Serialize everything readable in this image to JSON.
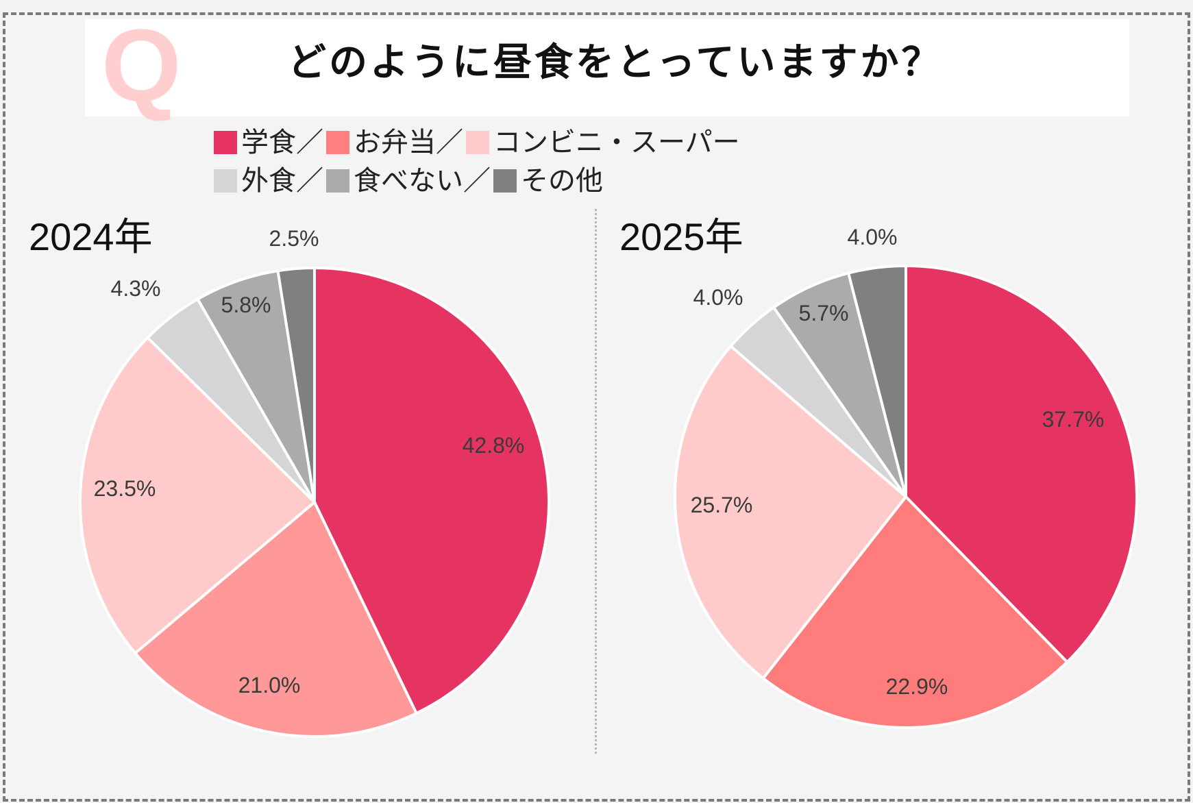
{
  "header": {
    "q_mark": "Q",
    "title": "どのように昼食をとっていますか？"
  },
  "legend": {
    "rows": [
      [
        {
          "label": "学食",
          "sep": "／",
          "color": "#e63462"
        },
        {
          "label": "お弁当",
          "sep": "／",
          "color": "#ff8080"
        },
        {
          "label": "コンビニ・スーパー",
          "sep": "",
          "color": "#fecaca"
        }
      ],
      [
        {
          "label": "外食",
          "sep": "／",
          "color": "#d5d5d5"
        },
        {
          "label": "食べない",
          "sep": "／",
          "color": "#ababab"
        },
        {
          "label": "その他",
          "sep": "",
          "color": "#808080"
        }
      ]
    ]
  },
  "chart_data": [
    {
      "type": "pie",
      "title": "2024年",
      "categories": [
        "学食",
        "お弁当",
        "コンビニ・スーパー",
        "外食",
        "食べない",
        "その他"
      ],
      "values": [
        42.8,
        21.0,
        23.5,
        4.3,
        5.8,
        2.5
      ],
      "labels": [
        "42.8%",
        "21.0%",
        "23.5%",
        "4.3%",
        "5.8%",
        "2.5%"
      ],
      "colors": [
        "#e63462",
        "#ff9898",
        "#fecaca",
        "#d5d5d5",
        "#ababab",
        "#808080"
      ],
      "start": "12 o'clock, clockwise"
    },
    {
      "type": "pie",
      "title": "2025年",
      "categories": [
        "学食",
        "お弁当",
        "コンビニ・スーパー",
        "外食",
        "食べない",
        "その他"
      ],
      "values": [
        37.7,
        22.9,
        25.7,
        4.0,
        5.7,
        4.0
      ],
      "labels": [
        "37.7%",
        "22.9%",
        "25.7%",
        "4.0%",
        "5.7%",
        "4.0%"
      ],
      "colors": [
        "#e63462",
        "#ff7c7c",
        "#fecaca",
        "#d5d5d5",
        "#ababab",
        "#808080"
      ],
      "start": "12 o'clock, clockwise"
    }
  ]
}
